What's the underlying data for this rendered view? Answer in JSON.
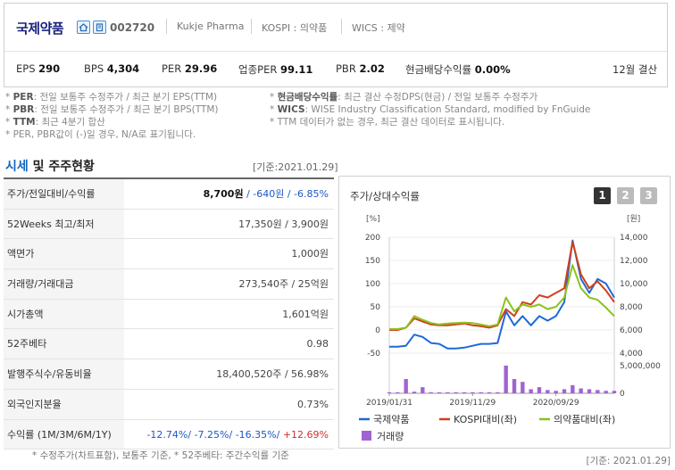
{
  "header": {
    "company_name": "국제약품",
    "code": "002720",
    "eng_name": "Kukje Pharma",
    "kospi": "KOSPI : 의약품",
    "wics": "WICS : 제약",
    "fiscal": "12월 결산",
    "metrics": [
      {
        "label": "EPS",
        "value": "290"
      },
      {
        "label": "BPS",
        "value": "4,304"
      },
      {
        "label": "PER",
        "value": "29.96"
      },
      {
        "label": "업종PER",
        "value": "99.11"
      },
      {
        "label": "PBR",
        "value": "2.02"
      },
      {
        "label": "현금배당수익률",
        "value": "0.00%"
      }
    ]
  },
  "notes": {
    "left": [
      {
        "key": "PER",
        "text": ": 전일 보통주 수정주가 / 최근 분기 EPS(TTM)"
      },
      {
        "key": "PBR",
        "text": ": 전일 보통주 수정주가 / 최근 분기 BPS(TTM)"
      },
      {
        "key": "TTM",
        "text": ": 최근 4분기 합산"
      },
      {
        "key": "",
        "text": "PER, PBR값이 (-)일 경우, N/A로 표기됩니다."
      }
    ],
    "right": [
      {
        "key": "현금배당수익률",
        "text": ": 최근 결산 수정DPS(현금) / 전일 보통주 수정주가"
      },
      {
        "key": "WICS",
        "text": ": WISE Industry Classification Standard, modified by FnGuide"
      },
      {
        "key": "",
        "text": "TTM 데이터가 없는 경우, 최근 결산 데이터로 표시됩니다."
      }
    ]
  },
  "section": {
    "title_accent": "시세",
    "title_rest": " 및 주주현황",
    "date": "[기준:2021.01.29]"
  },
  "table": [
    {
      "label": "주가/전일대비/수익률",
      "v1": "8,700원",
      "v2": " / -640원",
      "v3": " / -6.85%"
    },
    {
      "label": "52Weeks 최고/최저",
      "value": "17,350원 / 3,900원"
    },
    {
      "label": "액면가",
      "value": "1,000원"
    },
    {
      "label": "거래량/거래대금",
      "value": "273,540주 / 25억원"
    },
    {
      "label": "시가총액",
      "value": "1,601억원"
    },
    {
      "label": "52주베타",
      "value": "0.98"
    },
    {
      "label": "발행주식수/유동비율",
      "value": "18,400,520주 / 56.98%"
    },
    {
      "label": "외국인지분율",
      "value": "0.73%"
    },
    {
      "label": "수익률 (1M/3M/6M/1Y)",
      "r1": "-12.74%",
      "r2": "-7.25%",
      "r3": "-16.35%",
      "r4": "+12.69%"
    }
  ],
  "footnote_left": "* 수정주가(차트표함), 보통주 기준, * 52주베타: 주간수익률 기준",
  "footnote_right": "[기준: 2021.01.29]",
  "chart_panel": {
    "title": "주가/상대수익률",
    "pages": [
      "1",
      "2",
      "3"
    ]
  },
  "colors": {
    "stock": "#1e6ad6",
    "kospi": "#d0401a",
    "sector": "#8cc21c",
    "volume": "#a064d0"
  },
  "chart_data": {
    "type": "line",
    "title": "주가/상대수익률",
    "left_unit": "[%]",
    "right_unit": "[원]",
    "ylim_left": [
      -50,
      200
    ],
    "ylim_right": [
      4000,
      14000
    ],
    "left_ticks": [
      "200",
      "150",
      "100",
      "50",
      "0",
      "-50"
    ],
    "right_ticks": [
      "14,000",
      "12,000",
      "10,000",
      "8,000",
      "6,000",
      "4,000"
    ],
    "volume_ticks": [
      "5,000,000",
      "0"
    ],
    "volume_max": 7000000,
    "x_ticks": [
      "2019/01/31",
      "2019/11/29",
      "2020/09/29"
    ],
    "x_tick_index": [
      0,
      10,
      20
    ],
    "series": [
      {
        "name": "국제약품",
        "axis": "left",
        "values": [
          -36,
          -36,
          -34,
          -10,
          -15,
          -28,
          -30,
          -40,
          -40,
          -38,
          -34,
          -30,
          -30,
          -28,
          40,
          10,
          30,
          10,
          30,
          20,
          30,
          60,
          193,
          110,
          80,
          110,
          100,
          70
        ]
      },
      {
        "name": "KOSPI대비(좌)",
        "axis": "left",
        "values": [
          0,
          0,
          5,
          25,
          18,
          12,
          10,
          10,
          12,
          14,
          10,
          8,
          5,
          10,
          45,
          30,
          60,
          55,
          75,
          70,
          80,
          90,
          190,
          120,
          90,
          105,
          85,
          60
        ]
      },
      {
        "name": "의약품대비(좌)",
        "axis": "left",
        "values": [
          2,
          2,
          5,
          30,
          22,
          15,
          12,
          14,
          15,
          16,
          15,
          12,
          8,
          12,
          70,
          40,
          55,
          50,
          55,
          45,
          50,
          70,
          140,
          90,
          70,
          65,
          48,
          30
        ]
      }
    ],
    "volume_name": "거래량",
    "volume": [
      200000,
      200000,
      3500000,
      400000,
      1500000,
      200000,
      200000,
      200000,
      150000,
      200000,
      150000,
      150000,
      150000,
      200000,
      6800000,
      3500000,
      2800000,
      1000000,
      1500000,
      800000,
      600000,
      1000000,
      2000000,
      1200000,
      1000000,
      800000,
      600000,
      600000
    ]
  }
}
